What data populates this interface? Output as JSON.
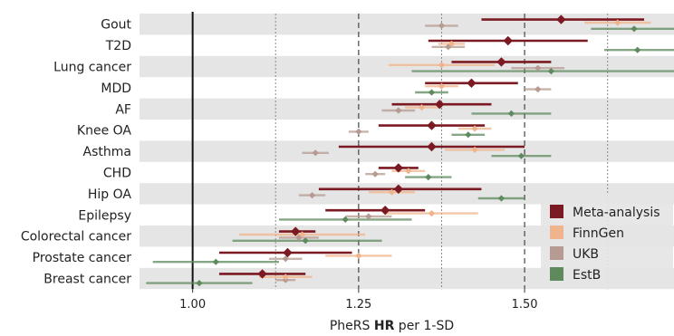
{
  "chart_data": {
    "type": "forest",
    "title": "",
    "xlabel_parts": [
      "PheRS ",
      "HR",
      " per 1-SD"
    ],
    "ylabel": "",
    "xlim": [
      0.92,
      1.725
    ],
    "x_ticks": [
      1.0,
      1.25,
      1.5
    ],
    "x_tick_labels": [
      "1.00",
      "1.25",
      "1.50"
    ],
    "reference_line": 1.0,
    "dashed_lines": [
      1.25,
      1.5
    ],
    "dotted_lines": [
      1.125,
      1.375,
      1.625
    ],
    "grid": false,
    "legend_position": "bottom-right",
    "categories": [
      "Gout",
      "T2D",
      "Lung cancer",
      "MDD",
      "AF",
      "Knee OA",
      "Asthma",
      "CHD",
      "Hip OA",
      "Epilepsy",
      "Colorectal cancer",
      "Prostate cancer",
      "Breast cancer"
    ],
    "series": [
      {
        "name": "Meta-analysis",
        "color": "#7b1a22",
        "points": [
          {
            "hr": 1.555,
            "lo": 1.435,
            "hi": 1.68
          },
          {
            "hr": 1.475,
            "lo": 1.355,
            "hi": 1.595
          },
          {
            "hr": 1.465,
            "lo": 1.39,
            "hi": 1.54
          },
          {
            "hr": 1.42,
            "lo": 1.35,
            "hi": 1.49
          },
          {
            "hr": 1.372,
            "lo": 1.3,
            "hi": 1.45
          },
          {
            "hr": 1.36,
            "lo": 1.28,
            "hi": 1.44
          },
          {
            "hr": 1.36,
            "lo": 1.22,
            "hi": 1.5
          },
          {
            "hr": 1.31,
            "lo": 1.28,
            "hi": 1.34
          },
          {
            "hr": 1.31,
            "lo": 1.19,
            "hi": 1.435
          },
          {
            "hr": 1.29,
            "lo": 1.2,
            "hi": 1.35
          },
          {
            "hr": 1.155,
            "lo": 1.13,
            "hi": 1.185
          },
          {
            "hr": 1.143,
            "lo": 1.04,
            "hi": 1.24
          },
          {
            "hr": 1.105,
            "lo": 1.04,
            "hi": 1.17
          }
        ]
      },
      {
        "name": "FinnGen",
        "color": "#f0b48c",
        "points": [
          {
            "hr": 1.64,
            "lo": 1.59,
            "hi": 1.69
          },
          {
            "hr": 1.39,
            "lo": 1.37,
            "hi": 1.41
          },
          {
            "hr": 1.375,
            "lo": 1.295,
            "hi": 1.455
          },
          {
            "hr": 1.375,
            "lo": 1.35,
            "hi": 1.4
          },
          {
            "hr": 1.345,
            "lo": 1.32,
            "hi": 1.37
          },
          {
            "hr": 1.425,
            "lo": 1.4,
            "hi": 1.45
          },
          {
            "hr": 1.425,
            "lo": 1.38,
            "hi": 1.47
          },
          {
            "hr": 1.325,
            "lo": 1.3,
            "hi": 1.35
          },
          {
            "hr": 1.3,
            "lo": 1.265,
            "hi": 1.335
          },
          {
            "hr": 1.36,
            "lo": 1.29,
            "hi": 1.43
          },
          {
            "hr": 1.165,
            "lo": 1.07,
            "hi": 1.26
          },
          {
            "hr": 1.25,
            "lo": 1.2,
            "hi": 1.3
          },
          {
            "hr": 1.14,
            "lo": 1.1,
            "hi": 1.18
          }
        ]
      },
      {
        "name": "UKB",
        "color": "#b59b92",
        "points": [
          {
            "hr": 1.375,
            "lo": 1.35,
            "hi": 1.4
          },
          {
            "hr": 1.385,
            "lo": 1.36,
            "hi": 1.41
          },
          {
            "hr": 1.52,
            "lo": 1.48,
            "hi": 1.56
          },
          {
            "hr": 1.52,
            "lo": 1.5,
            "hi": 1.54
          },
          {
            "hr": 1.31,
            "lo": 1.285,
            "hi": 1.335
          },
          {
            "hr": 1.25,
            "lo": 1.235,
            "hi": 1.265
          },
          {
            "hr": 1.185,
            "lo": 1.165,
            "hi": 1.205
          },
          {
            "hr": 1.275,
            "lo": 1.26,
            "hi": 1.29
          },
          {
            "hr": 1.18,
            "lo": 1.16,
            "hi": 1.2
          },
          {
            "hr": 1.265,
            "lo": 1.23,
            "hi": 1.3
          },
          {
            "hr": 1.16,
            "lo": 1.13,
            "hi": 1.19
          },
          {
            "hr": 1.14,
            "lo": 1.115,
            "hi": 1.165
          },
          {
            "hr": 1.14,
            "lo": 1.125,
            "hi": 1.155
          }
        ]
      },
      {
        "name": "EstB",
        "color": "#5e8a5e",
        "points": [
          {
            "hr": 1.665,
            "lo": 1.6,
            "hi": 1.725
          },
          {
            "hr": 1.67,
            "lo": 1.62,
            "hi": 1.725
          },
          {
            "hr": 1.54,
            "lo": 1.33,
            "hi": 1.725
          },
          {
            "hr": 1.36,
            "lo": 1.335,
            "hi": 1.385
          },
          {
            "hr": 1.48,
            "lo": 1.42,
            "hi": 1.54
          },
          {
            "hr": 1.415,
            "lo": 1.39,
            "hi": 1.44
          },
          {
            "hr": 1.495,
            "lo": 1.45,
            "hi": 1.54
          },
          {
            "hr": 1.355,
            "lo": 1.32,
            "hi": 1.39
          },
          {
            "hr": 1.465,
            "lo": 1.43,
            "hi": 1.5
          },
          {
            "hr": 1.23,
            "lo": 1.13,
            "hi": 1.33
          },
          {
            "hr": 1.17,
            "lo": 1.06,
            "hi": 1.285
          },
          {
            "hr": 1.035,
            "lo": 0.94,
            "hi": 1.13
          },
          {
            "hr": 1.01,
            "lo": 0.93,
            "hi": 1.09
          }
        ]
      }
    ]
  }
}
